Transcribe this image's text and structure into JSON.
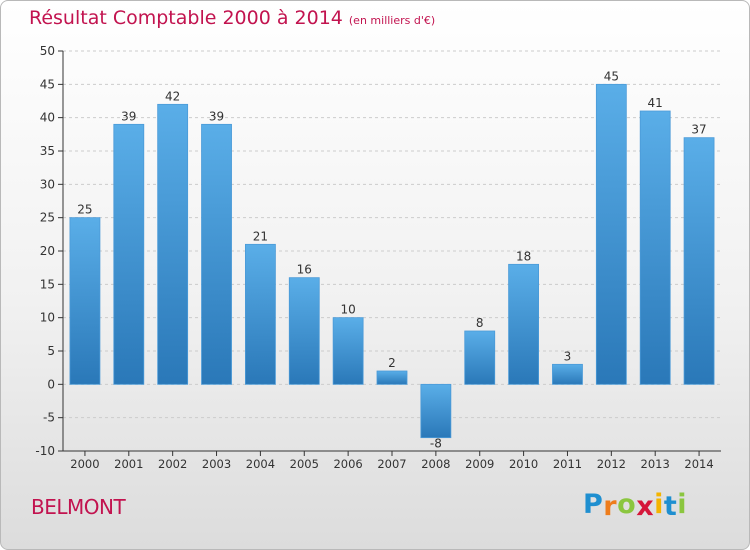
{
  "chart_data": {
    "type": "bar",
    "title": "Résultat Comptable 2000 à 2014",
    "unit_label": "(en milliers d'€)",
    "categories": [
      "2000",
      "2001",
      "2002",
      "2003",
      "2004",
      "2005",
      "2006",
      "2007",
      "2008",
      "2009",
      "2010",
      "2011",
      "2012",
      "2013",
      "2014"
    ],
    "values": [
      25,
      39,
      42,
      39,
      21,
      16,
      10,
      2,
      -8,
      8,
      18,
      3,
      45,
      41,
      37
    ],
    "ylim": [
      -10,
      50
    ],
    "yticks": [
      -10,
      -5,
      0,
      5,
      10,
      15,
      20,
      25,
      30,
      35,
      40,
      45,
      50
    ],
    "grid": true,
    "bar_color_light": "#5aaee8",
    "bar_color_dark": "#2a78b8",
    "xlabel": "",
    "ylabel": ""
  },
  "place": "BELMONT",
  "brand": {
    "letters": [
      "P",
      "r",
      "o",
      "x",
      "i",
      "t",
      "i"
    ],
    "colors": [
      "#1f8fd0",
      "#ee7d1c",
      "#8bc63f",
      "#d5173a",
      "#f4b400",
      "#1f8fd0",
      "#8bc63f"
    ]
  },
  "colors": {
    "accent": "#c2134f",
    "grid": "#cccccc",
    "axis": "#333333"
  }
}
